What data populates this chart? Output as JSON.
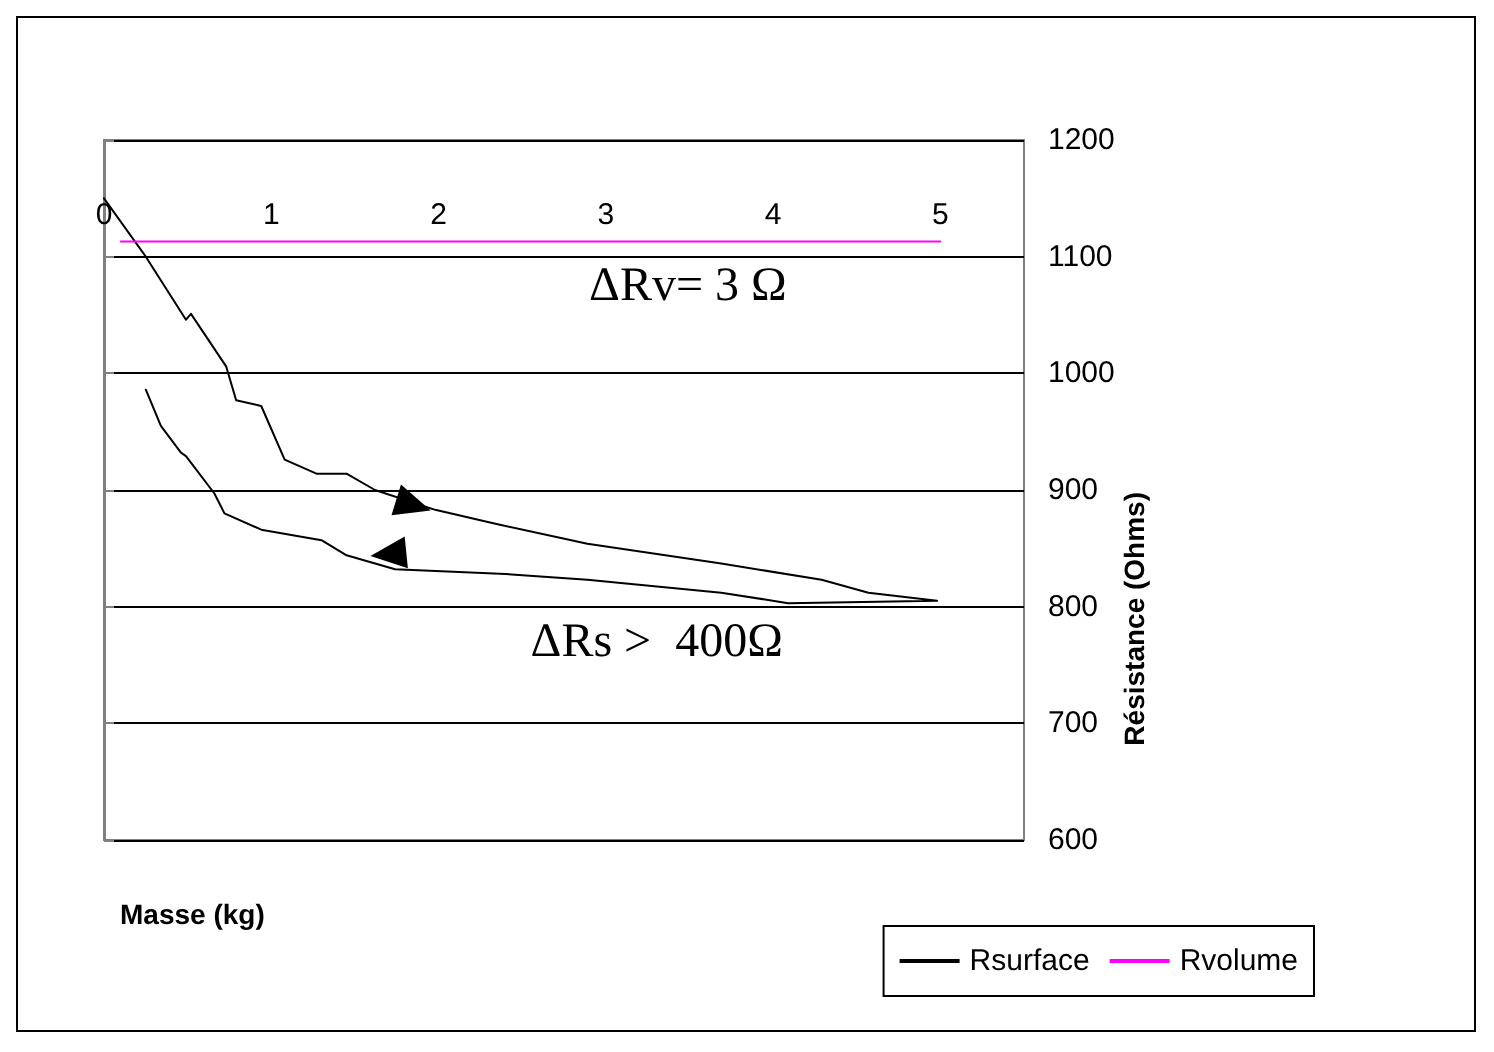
{
  "chart_data": {
    "type": "line",
    "xlabel": "Masse (kg)",
    "ylabel": "Résistance (Ohms)",
    "xlim": [
      0,
      5.5
    ],
    "xticks": [
      0,
      1,
      2,
      3,
      4,
      5
    ],
    "ylim": [
      600,
      1200
    ],
    "yticks": [
      600,
      700,
      800,
      900,
      1000,
      1100,
      1200
    ],
    "grid": "y",
    "legend": "bottom right",
    "marker": "none",
    "line_style": "solid",
    "annotations": [
      "ΔRv= 3 Ω",
      "ΔRs >  400Ω"
    ],
    "series": [
      {
        "name": "Rsurface",
        "color": "#000000",
        "x": [
          0,
          0.25,
          0.49,
          0.52,
          0.73,
          0.79,
          0.94,
          1.08,
          1.27,
          1.45,
          1.62,
          1.98,
          2.34,
          2.89,
          3.69,
          4.29,
          4.57,
          4.98,
          4.09,
          3.69,
          2.89,
          2.4,
          1.74,
          1.45,
          1.3,
          0.94,
          0.72,
          0.66,
          0.49,
          0.46,
          0.34,
          0.25
        ],
        "values": [
          1150,
          1100,
          1046,
          1051,
          1006,
          977,
          972,
          926,
          914,
          914,
          900,
          883,
          871,
          854,
          837,
          823,
          812,
          805,
          803,
          812,
          823,
          828,
          832,
          844,
          857,
          866,
          880,
          897,
          929,
          932,
          955,
          986
        ]
      },
      {
        "name": "Rvolume",
        "color": "#ff00ff",
        "x": [
          0.1,
          5
        ],
        "values": [
          1113,
          1113
        ]
      }
    ]
  }
}
